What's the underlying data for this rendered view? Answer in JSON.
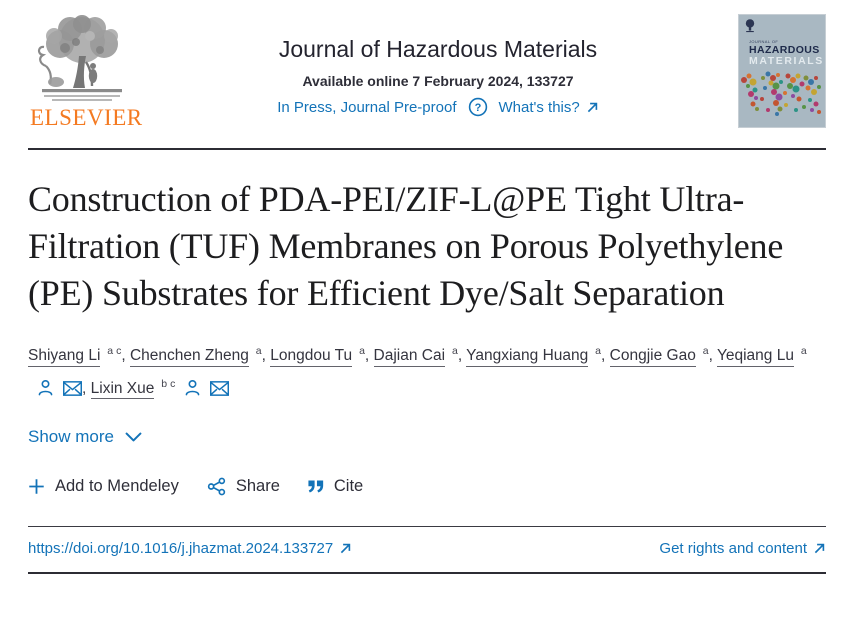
{
  "colors": {
    "link_blue": "#1373b8",
    "dark_text": "#2e2e38",
    "title_text": "#1d1d1f",
    "elsevier_orange": "#f47a21",
    "cover_bg": "#a9b8c2",
    "rule_dark": "#2c2c34"
  },
  "header": {
    "publisher": "ELSEVIER",
    "journal_title": "Journal of Hazardous Materials",
    "availability": "Available online 7 February 2024, 133727",
    "status_link": "In Press, Journal Pre-proof",
    "whats_this_link": "What's this?",
    "help_icon": "question-circle-icon",
    "cover": {
      "line1": "JOURNAL OF",
      "line2": "HAZARDOUS",
      "line3": "MATERIALS"
    }
  },
  "article": {
    "title": "Construction of PDA-PEI/ZIF-L@PE Tight Ultra-Filtration (TUF) Membranes on Porous Polyethylene (PE) Substrates for Efficient Dye/Salt Separation",
    "authors": [
      {
        "name": "Shiyang Li",
        "sup": "a c",
        "icons": false,
        "sep": ", "
      },
      {
        "name": "Chenchen Zheng",
        "sup": "a",
        "icons": false,
        "sep": ", "
      },
      {
        "name": "Longdou Tu",
        "sup": "a",
        "icons": false,
        "sep": ", "
      },
      {
        "name": "Dajian Cai",
        "sup": "a",
        "icons": false,
        "sep": ", "
      },
      {
        "name": "Yangxiang Huang",
        "sup": "a",
        "icons": false,
        "sep": ", "
      },
      {
        "name": "Congjie Gao",
        "sup": "a",
        "icons": false,
        "sep": ", "
      },
      {
        "name": "Yeqiang Lu",
        "sup": "a",
        "icons": true,
        "sep": ", "
      },
      {
        "name": "Lixin Xue",
        "sup": "b c",
        "icons": true,
        "sep": ""
      }
    ],
    "show_more_label": "Show more"
  },
  "actions": {
    "mendeley_label": "Add to Mendeley",
    "share_label": "Share",
    "cite_label": "Cite"
  },
  "footer": {
    "doi": "https://doi.org/10.1016/j.jhazmat.2024.133727",
    "rights_link": "Get rights and content"
  }
}
